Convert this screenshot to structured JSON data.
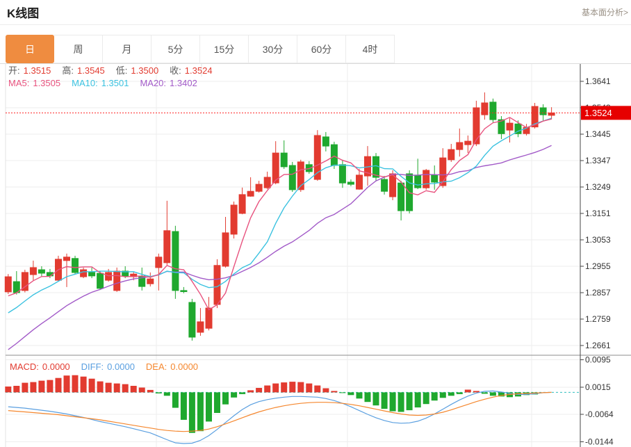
{
  "header": {
    "title": "K线图",
    "link": "基本面分析>"
  },
  "tabs": [
    {
      "label": "日",
      "active": true
    },
    {
      "label": "周",
      "active": false
    },
    {
      "label": "月",
      "active": false
    },
    {
      "label": "5分",
      "active": false
    },
    {
      "label": "15分",
      "active": false
    },
    {
      "label": "30分",
      "active": false
    },
    {
      "label": "60分",
      "active": false
    },
    {
      "label": "4时",
      "active": false
    }
  ],
  "legend": {
    "ohlc": [
      {
        "label": "开:",
        "value": "1.3515"
      },
      {
        "label": "高:",
        "value": "1.3545"
      },
      {
        "label": "低:",
        "value": "1.3500"
      },
      {
        "label": "收:",
        "value": "1.3524"
      }
    ],
    "ma": [
      {
        "label": "MA5:",
        "value": "1.3505",
        "color": "#e8537f"
      },
      {
        "label": "MA10:",
        "value": "1.3501",
        "color": "#3bc2e0"
      },
      {
        "label": "MA20:",
        "value": "1.3402",
        "color": "#a25ac8"
      }
    ],
    "macd": [
      {
        "label": "MACD:",
        "value": "0.0000",
        "color": "#e23b30"
      },
      {
        "label": "DIFF:",
        "value": "0.0000",
        "color": "#5a9fe0"
      },
      {
        "label": "DEA:",
        "value": "0.0000",
        "color": "#f5872e"
      }
    ]
  },
  "colors": {
    "up": "#e23b30",
    "down": "#1fa82e",
    "ma5": "#e8537f",
    "ma10": "#3bc2e0",
    "ma20": "#a25ac8",
    "diff": "#5a9fe0",
    "dea": "#f5872e",
    "price_line": "#ff2323",
    "badge_bg": "#e60000",
    "badge_text": "#ffffff",
    "grid": "#ededed",
    "axis_line": "#444444",
    "axis_text": "#333333",
    "label_text": "#5a5a5a",
    "value_red": "#e23b30",
    "zero_line": "#2fbfbf",
    "separator": "#8c8c8c",
    "border": "#e3e3e3"
  },
  "chart_data": {
    "type": "candlestick",
    "title": "K线图",
    "price_axis": {
      "ticks": [
        1.3641,
        1.3543,
        1.3445,
        1.3347,
        1.3249,
        1.3151,
        1.3053,
        1.2955,
        1.2857,
        1.2759,
        1.2661
      ],
      "current": 1.3524
    },
    "macd_axis": {
      "ticks": [
        0.0095,
        0.0015,
        -0.0064,
        -0.0144
      ]
    },
    "ma_periods": [
      5,
      10,
      20
    ],
    "ma_seed": [
      1.24,
      1.242,
      1.2445,
      1.247,
      1.2495,
      1.252,
      1.2545,
      1.257,
      1.26,
      1.263,
      1.266,
      1.269,
      1.272,
      1.275,
      1.2775,
      1.28,
      1.282,
      1.2838,
      1.2852
    ],
    "candles": [
      [
        1.286,
        1.2926,
        1.2852,
        1.2916
      ],
      [
        1.2898,
        1.2937,
        1.285,
        1.2857
      ],
      [
        1.2865,
        1.2942,
        1.2858,
        1.2932
      ],
      [
        1.2924,
        1.2976,
        1.2903,
        1.295
      ],
      [
        1.2942,
        1.2955,
        1.2916,
        1.2929
      ],
      [
        1.2932,
        1.2945,
        1.2911,
        1.2919
      ],
      [
        1.2903,
        1.2994,
        1.2901,
        1.2981
      ],
      [
        1.2976,
        1.3002,
        1.2878,
        1.2989
      ],
      [
        1.2984,
        1.2994,
        1.2926,
        1.2932
      ],
      [
        1.2916,
        1.295,
        1.2911,
        1.2942
      ],
      [
        1.2932,
        1.295,
        1.2911,
        1.2919
      ],
      [
        1.2929,
        1.2937,
        1.2867,
        1.2873
      ],
      [
        1.2903,
        1.2945,
        1.2898,
        1.2932
      ],
      [
        1.2865,
        1.295,
        1.286,
        1.2937
      ],
      [
        1.2937,
        1.2955,
        1.2911,
        1.2919
      ],
      [
        1.2916,
        1.2934,
        1.2903,
        1.2926
      ],
      [
        1.2919,
        1.295,
        1.2865,
        1.288
      ],
      [
        1.289,
        1.2932,
        1.288,
        1.2908
      ],
      [
        1.295,
        1.3002,
        1.2865,
        1.2989
      ],
      [
        1.2968,
        1.3198,
        1.296,
        1.3087
      ],
      [
        1.3084,
        1.3105,
        1.2834,
        1.2865
      ],
      [
        1.2865,
        1.2878,
        1.2855,
        1.2862
      ],
      [
        1.2821,
        1.2834,
        1.2679,
        1.2692
      ],
      [
        1.271,
        1.28,
        1.2697,
        1.2749
      ],
      [
        1.2725,
        1.2841,
        1.2717,
        1.28
      ],
      [
        1.2813,
        1.2981,
        1.28,
        1.2958
      ],
      [
        1.2955,
        1.3138,
        1.295,
        1.3079
      ],
      [
        1.3074,
        1.3195,
        1.3058,
        1.3182
      ],
      [
        1.3151,
        1.3247,
        1.3148,
        1.3221
      ],
      [
        1.3215,
        1.3285,
        1.3213,
        1.3233
      ],
      [
        1.3233,
        1.3272,
        1.3228,
        1.3259
      ],
      [
        1.3246,
        1.3306,
        1.3241,
        1.3285
      ],
      [
        1.3264,
        1.3419,
        1.3259,
        1.3375
      ],
      [
        1.3375,
        1.3422,
        1.3316,
        1.3324
      ],
      [
        1.3329,
        1.3342,
        1.3231,
        1.3239
      ],
      [
        1.3239,
        1.335,
        1.3231,
        1.3342
      ],
      [
        1.3332,
        1.3345,
        1.3298,
        1.3306
      ],
      [
        1.3277,
        1.346,
        1.3272,
        1.344
      ],
      [
        1.3435,
        1.3453,
        1.3381,
        1.3401
      ],
      [
        1.3406,
        1.3417,
        1.3316,
        1.3329
      ],
      [
        1.3332,
        1.335,
        1.3246,
        1.3264
      ],
      [
        1.3267,
        1.3277,
        1.3252,
        1.3259
      ],
      [
        1.3241,
        1.3316,
        1.3239,
        1.3293
      ],
      [
        1.329,
        1.3401,
        1.3254,
        1.3362
      ],
      [
        1.3362,
        1.3375,
        1.3272,
        1.3285
      ],
      [
        1.3277,
        1.329,
        1.3221,
        1.3233
      ],
      [
        1.3213,
        1.3311,
        1.32,
        1.3298
      ],
      [
        1.3264,
        1.3272,
        1.3125,
        1.3161
      ],
      [
        1.3298,
        1.3311,
        1.3151,
        1.3161
      ],
      [
        1.3293,
        1.3354,
        1.3241,
        1.3246
      ],
      [
        1.3246,
        1.3316,
        1.3239,
        1.3311
      ],
      [
        1.3293,
        1.3329,
        1.3239,
        1.3267
      ],
      [
        1.3254,
        1.3393,
        1.3246,
        1.3357
      ],
      [
        1.335,
        1.3409,
        1.3342,
        1.3388
      ],
      [
        1.3388,
        1.3466,
        1.3362,
        1.3414
      ],
      [
        1.3406,
        1.344,
        1.3375,
        1.3419
      ],
      [
        1.3409,
        1.3569,
        1.3401,
        1.3543
      ],
      [
        1.3517,
        1.36,
        1.3499,
        1.3561
      ],
      [
        1.3564,
        1.3577,
        1.3489,
        1.3499
      ],
      [
        1.3499,
        1.3512,
        1.3427,
        1.3447
      ],
      [
        1.346,
        1.3504,
        1.3414,
        1.3486
      ],
      [
        1.3483,
        1.3496,
        1.3434,
        1.3447
      ],
      [
        1.3447,
        1.3483,
        1.344,
        1.347
      ],
      [
        1.3472,
        1.3561,
        1.3466,
        1.3548
      ],
      [
        1.3543,
        1.3556,
        1.3496,
        1.3517
      ],
      [
        1.3515,
        1.3545,
        1.35,
        1.3524
      ]
    ],
    "macd": {
      "hist": [
        0.0017,
        0.0019,
        0.0028,
        0.003,
        0.0034,
        0.0036,
        0.0042,
        0.0049,
        0.005,
        0.0046,
        0.004,
        0.0032,
        0.0028,
        0.0026,
        0.0024,
        0.0019,
        0.0014,
        0.0007,
        -0.0003,
        -0.001,
        -0.0045,
        -0.008,
        -0.0118,
        -0.0113,
        -0.0085,
        -0.006,
        -0.0035,
        -0.0015,
        -0.0005,
        0.0006,
        0.0013,
        0.002,
        0.0026,
        0.0029,
        0.0031,
        0.003,
        0.0026,
        0.002,
        0.0012,
        0.0004,
        -0.0002,
        -0.0008,
        -0.0018,
        -0.0028,
        -0.0038,
        -0.0048,
        -0.0055,
        -0.0057,
        -0.0052,
        -0.0044,
        -0.0034,
        -0.0024,
        -0.0016,
        -0.001,
        -0.0005,
        0.0008,
        0.0004,
        -0.0004,
        -0.001,
        -0.0012,
        -0.0014,
        -0.0012,
        -0.0008,
        -0.0006,
        0.0,
        0.0
      ],
      "diff": [
        -0.0042,
        -0.0044,
        -0.0046,
        -0.0049,
        -0.0052,
        -0.0055,
        -0.0059,
        -0.0063,
        -0.0068,
        -0.0073,
        -0.0079,
        -0.0085,
        -0.009,
        -0.0095,
        -0.01,
        -0.0106,
        -0.0112,
        -0.0118,
        -0.0128,
        -0.0138,
        -0.0147,
        -0.0149,
        -0.0148,
        -0.014,
        -0.0126,
        -0.0108,
        -0.0088,
        -0.0068,
        -0.005,
        -0.0036,
        -0.0027,
        -0.0021,
        -0.0017,
        -0.0014,
        -0.0012,
        -0.0012,
        -0.0013,
        -0.0014,
        -0.0018,
        -0.0024,
        -0.0032,
        -0.0042,
        -0.0053,
        -0.0064,
        -0.0074,
        -0.0082,
        -0.0088,
        -0.009,
        -0.0089,
        -0.0084,
        -0.0075,
        -0.0063,
        -0.0049,
        -0.0035,
        -0.0022,
        -0.0011,
        -0.0002,
        0.0003,
        0.0004,
        0.0001,
        -0.0003,
        -0.0006,
        -0.0006,
        -0.0004,
        -0.0001,
        0.0
      ],
      "dea": [
        -0.0053,
        -0.0055,
        -0.0057,
        -0.0059,
        -0.0061,
        -0.0063,
        -0.0065,
        -0.0068,
        -0.0071,
        -0.0074,
        -0.0077,
        -0.008,
        -0.0084,
        -0.0088,
        -0.0092,
        -0.0096,
        -0.01,
        -0.0104,
        -0.0108,
        -0.0111,
        -0.0113,
        -0.0114,
        -0.0113,
        -0.0111,
        -0.0107,
        -0.01,
        -0.0092,
        -0.0083,
        -0.0074,
        -0.0065,
        -0.0057,
        -0.005,
        -0.0044,
        -0.0039,
        -0.0035,
        -0.0032,
        -0.003,
        -0.0029,
        -0.0029,
        -0.003,
        -0.0032,
        -0.0035,
        -0.0039,
        -0.0044,
        -0.0049,
        -0.0054,
        -0.0059,
        -0.0063,
        -0.0066,
        -0.0067,
        -0.0066,
        -0.0063,
        -0.0058,
        -0.0051,
        -0.0043,
        -0.0035,
        -0.0027,
        -0.002,
        -0.0014,
        -0.0009,
        -0.0006,
        -0.0004,
        -0.0003,
        -0.0002,
        -0.0001,
        0.0
      ]
    }
  }
}
